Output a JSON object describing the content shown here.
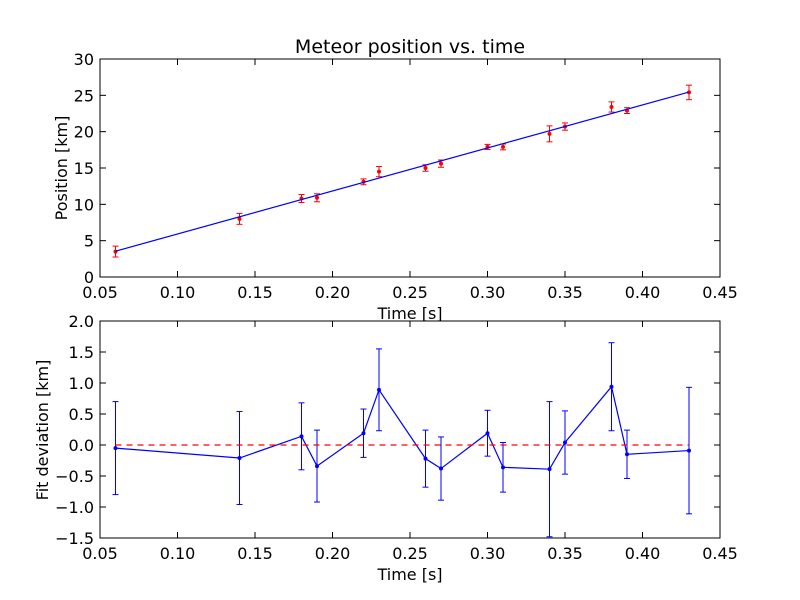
{
  "chart_data": [
    {
      "type": "scatter",
      "title": "Meteor position vs. time",
      "xlabel": "Time [s]",
      "ylabel": "Position [km]",
      "xlim": [
        0.05,
        0.45
      ],
      "ylim": [
        0,
        30
      ],
      "xticks": [
        "0.05",
        "0.10",
        "0.15",
        "0.20",
        "0.25",
        "0.30",
        "0.35",
        "0.40",
        "0.45"
      ],
      "yticks": [
        "0",
        "5",
        "10",
        "15",
        "20",
        "25",
        "30"
      ],
      "series": [
        {
          "kind": "errorbar-points",
          "color": "#ff0000",
          "x": [
            0.06,
            0.14,
            0.18,
            0.19,
            0.22,
            0.23,
            0.26,
            0.27,
            0.3,
            0.31,
            0.34,
            0.35,
            0.38,
            0.39,
            0.43
          ],
          "y": [
            3.5,
            8.0,
            10.8,
            10.9,
            13.1,
            14.5,
            15.0,
            15.6,
            17.9,
            17.9,
            19.7,
            20.7,
            23.4,
            22.9,
            25.4
          ],
          "yerr": [
            0.75,
            0.75,
            0.55,
            0.55,
            0.4,
            0.7,
            0.45,
            0.5,
            0.35,
            0.4,
            1.1,
            0.5,
            0.7,
            0.4,
            1.0
          ]
        },
        {
          "kind": "fit-line",
          "color": "#0000ff",
          "x": [
            0.06,
            0.43
          ],
          "y": [
            3.55,
            25.45
          ]
        }
      ],
      "grid": false
    },
    {
      "type": "line",
      "title": "",
      "xlabel": "Time [s]",
      "ylabel": "Fit deviation [km]",
      "xlim": [
        0.05,
        0.45
      ],
      "ylim": [
        -1.5,
        2.0
      ],
      "xticks": [
        "0.05",
        "0.10",
        "0.15",
        "0.20",
        "0.25",
        "0.30",
        "0.35",
        "0.40",
        "0.45"
      ],
      "yticks": [
        "−1.5",
        "−1.0",
        "−0.5",
        "0.0",
        "0.5",
        "1.0",
        "1.5",
        "2.0"
      ],
      "series": [
        {
          "kind": "errorbar-line",
          "color": "#0000ff",
          "x": [
            0.06,
            0.14,
            0.18,
            0.19,
            0.22,
            0.23,
            0.26,
            0.27,
            0.3,
            0.31,
            0.34,
            0.35,
            0.38,
            0.39,
            0.43
          ],
          "y": [
            -0.05,
            -0.21,
            0.14,
            -0.34,
            0.19,
            0.89,
            -0.22,
            -0.38,
            0.19,
            -0.36,
            -0.39,
            0.04,
            0.94,
            -0.15,
            -0.09
          ],
          "yerr": [
            0.75,
            0.75,
            0.54,
            0.58,
            0.39,
            0.66,
            0.46,
            0.51,
            0.37,
            0.4,
            1.09,
            0.51,
            0.71,
            0.39,
            1.02
          ]
        },
        {
          "kind": "reference-line",
          "color": "#ff0000",
          "dashed": true,
          "y": 0.0
        }
      ],
      "grid": false
    }
  ]
}
